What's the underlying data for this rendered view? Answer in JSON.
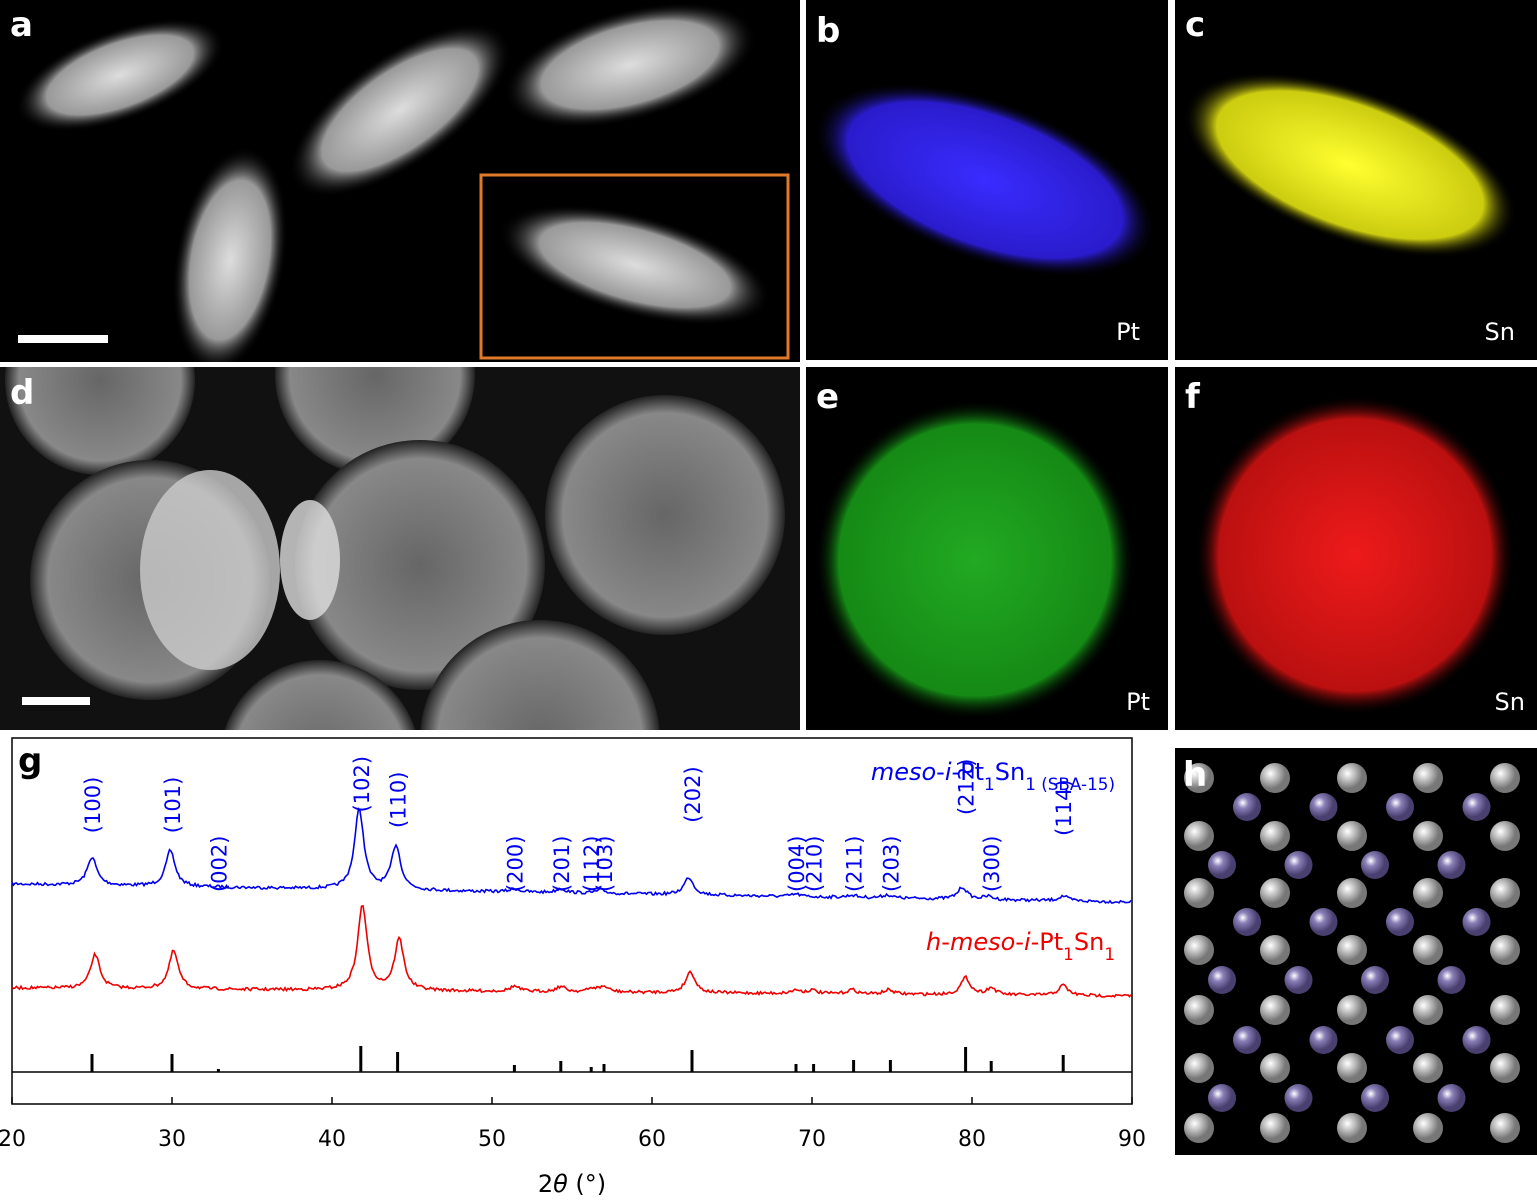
{
  "panels": [
    {
      "label": "a"
    },
    {
      "label": "b",
      "element": "Pt"
    },
    {
      "label": "c",
      "element": "Sn"
    },
    {
      "label": "d"
    },
    {
      "label": "e",
      "element": "Pt"
    },
    {
      "label": "f",
      "element": "Sn"
    },
    {
      "label": "h"
    }
  ],
  "chart_data": {
    "type": "xrd",
    "label": "g",
    "xlabel": [
      {
        "text": "2",
        "style": "normal"
      },
      {
        "text": "θ",
        "style": "italic"
      },
      {
        "text": " (°)",
        "style": "normal"
      }
    ],
    "xlim": [
      20,
      90
    ],
    "xticks": [
      20,
      30,
      40,
      50,
      60,
      70,
      80,
      90
    ],
    "series": [
      {
        "name": [
          {
            "text": "meso",
            "style": "italic"
          },
          {
            "text": "-",
            "style": "normal"
          },
          {
            "text": "i",
            "style": "italic"
          },
          {
            "text": "-Pt",
            "style": "normal"
          },
          {
            "text": "1",
            "style": "sub"
          },
          {
            "text": "Sn",
            "style": "normal"
          },
          {
            "text": "1",
            "style": "sub"
          },
          {
            "text": " (SBA-15)",
            "style": "sub"
          }
        ],
        "color": "#0000ee",
        "x": [
          25.0,
          29.9,
          41.7,
          44.0,
          51.4,
          54.3,
          56.8,
          62.3,
          69.0,
          72.5,
          74.7,
          79.4,
          81.0,
          85.7
        ],
        "values": [
          35,
          45,
          100,
          55,
          4,
          5,
          4,
          22,
          3,
          3,
          4,
          15,
          4,
          6
        ]
      },
      {
        "name": [
          {
            "text": "h",
            "style": "italic"
          },
          {
            "text": "-",
            "style": "normal"
          },
          {
            "text": "meso",
            "style": "italic"
          },
          {
            "text": "-",
            "style": "normal"
          },
          {
            "text": "i",
            "style": "italic"
          },
          {
            "text": "-Pt",
            "style": "normal"
          },
          {
            "text": "1",
            "style": "sub"
          },
          {
            "text": "Sn",
            "style": "normal"
          },
          {
            "text": "1",
            "style": "sub"
          }
        ],
        "color": "#ee0000",
        "x": [
          25.2,
          30.1,
          41.9,
          44.2,
          51.4,
          54.3,
          56.3,
          57.0,
          62.4,
          69.0,
          70.0,
          72.5,
          74.8,
          79.6,
          81.2,
          85.7
        ],
        "values": [
          40,
          45,
          100,
          60,
          6,
          6,
          4,
          6,
          25,
          4,
          4,
          5,
          5,
          20,
          8,
          12
        ]
      }
    ],
    "reflections": {
      "labels": [
        "(100)",
        "(101)",
        "(002)",
        "(102)",
        "(110)",
        "(200)",
        "(201)",
        "(112)",
        "(103)",
        "(202)",
        "(004)",
        "(210)",
        "(211)",
        "(203)",
        "(212)",
        "(300)",
        "(114)"
      ],
      "x": [
        25.0,
        30.0,
        32.9,
        41.8,
        44.1,
        51.4,
        54.3,
        56.2,
        57.0,
        62.5,
        69.0,
        70.1,
        72.6,
        74.9,
        79.6,
        81.2,
        85.7
      ],
      "values": [
        18,
        18,
        3,
        26,
        20,
        7,
        11,
        5,
        8,
        22,
        8,
        8,
        12,
        12,
        25,
        11,
        17
      ]
    }
  }
}
